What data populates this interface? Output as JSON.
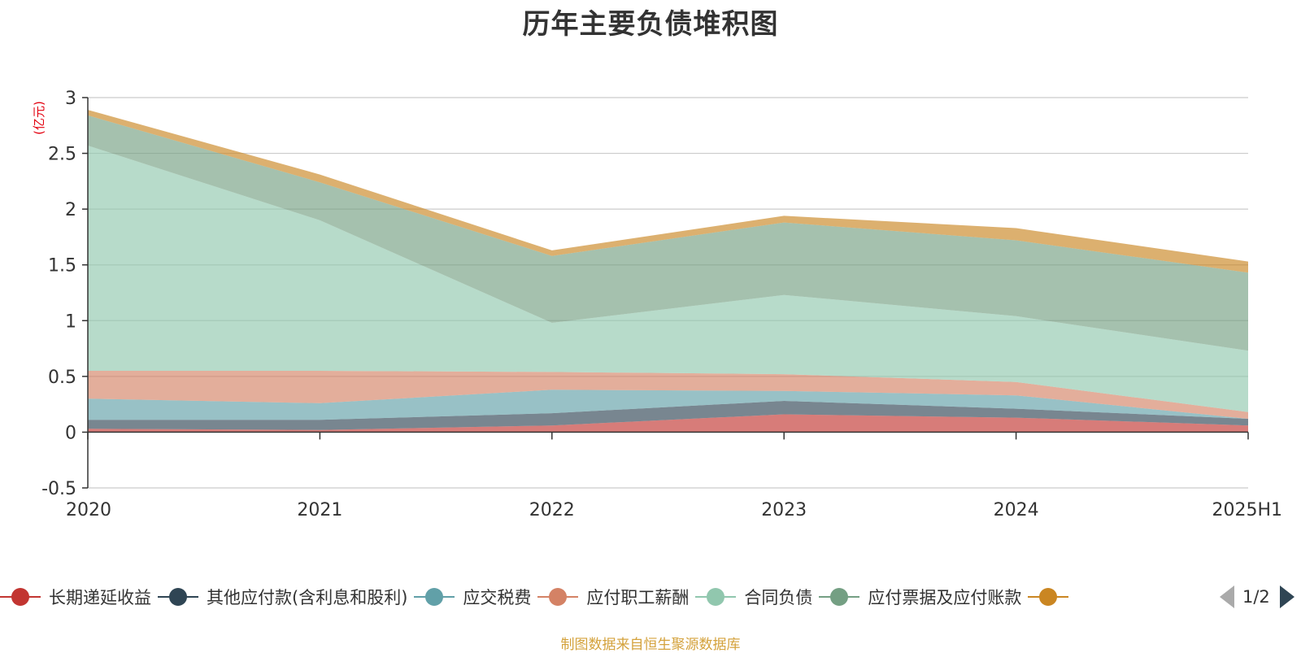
{
  "chart_data": {
    "type": "area",
    "stacked": true,
    "title": "历年主要负债堆积图",
    "ylabel": "(亿元)",
    "categories": [
      "2020",
      "2021",
      "2022",
      "2023",
      "2024",
      "2025H1"
    ],
    "ylim": [
      -0.5,
      3
    ],
    "yticks": [
      "3",
      "2.5",
      "2",
      "1.5",
      "1",
      "0.5",
      "0",
      "-0.5"
    ],
    "grid": true,
    "legend_position": "bottom",
    "series": [
      {
        "name": "长期递延收益",
        "color": "#c23531",
        "values": [
          0.03,
          0.02,
          0.06,
          0.16,
          0.13,
          0.06
        ]
      },
      {
        "name": "其他应付款(含利息和股利)",
        "color": "#2f4554",
        "values": [
          0.08,
          0.09,
          0.11,
          0.12,
          0.08,
          0.06
        ]
      },
      {
        "name": "应交税费",
        "color": "#61a0a8",
        "values": [
          0.19,
          0.15,
          0.21,
          0.09,
          0.12,
          0.0
        ]
      },
      {
        "name": "应付职工薪酬",
        "color": "#d48265",
        "values": [
          0.25,
          0.29,
          0.16,
          0.15,
          0.12,
          0.06
        ]
      },
      {
        "name": "合同负债",
        "color": "#91c7ae",
        "values": [
          2.02,
          1.35,
          0.44,
          0.71,
          0.59,
          0.55
        ]
      },
      {
        "name": "应付票据及应付账款",
        "color": "#749f83",
        "values": [
          0.27,
          0.34,
          0.6,
          0.65,
          0.68,
          0.7
        ]
      },
      {
        "name": "",
        "color": "#ca8622",
        "values": [
          0.05,
          0.07,
          0.05,
          0.06,
          0.11,
          0.1
        ]
      }
    ]
  },
  "legend": {
    "page": "1/2"
  },
  "footer": "制图数据来自恒生聚源数据库"
}
